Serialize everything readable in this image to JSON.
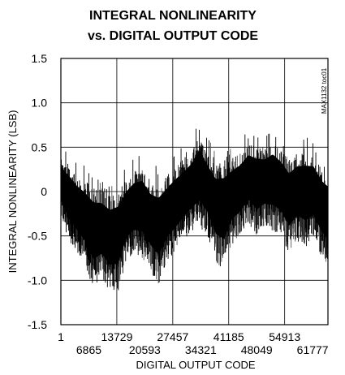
{
  "chart_data": {
    "type": "line",
    "title_lines": [
      "INTEGRAL NONLINEARITY",
      "vs. DIGITAL OUTPUT CODE"
    ],
    "xlabel": "DIGITAL OUTPUT CODE",
    "ylabel": "INTEGRAL NONLINEARITY (LSB)",
    "note": "MAX1132 toc01",
    "xlim": [
      1,
      65535
    ],
    "ylim": [
      -1.5,
      1.5
    ],
    "x_ticks_upper": [
      "1",
      "13729",
      "27457",
      "41185",
      "54913"
    ],
    "x_ticks_lower": [
      "6865",
      "20593",
      "34321",
      "48049",
      "61777"
    ],
    "x_tick_values": [
      1,
      6865,
      13729,
      20593,
      27457,
      34321,
      41185,
      48049,
      54913,
      61777
    ],
    "y_ticks": [
      "1.5",
      "1.0",
      "0.5",
      "0",
      "-0.5",
      "-1.0",
      "-1.5"
    ],
    "y_tick_values": [
      1.5,
      1.0,
      0.5,
      0,
      -0.5,
      -1.0,
      -1.5
    ],
    "grid": true,
    "series": [
      {
        "color": "#000000",
        "envelope": [
          {
            "x": 1,
            "min": -0.3,
            "max": 0.5
          },
          {
            "x": 2000,
            "min": -0.55,
            "max": 0.45
          },
          {
            "x": 4000,
            "min": -0.7,
            "max": 0.35
          },
          {
            "x": 6000,
            "min": -0.85,
            "max": 0.3
          },
          {
            "x": 8000,
            "min": -1.1,
            "max": 0.25
          },
          {
            "x": 10000,
            "min": -1.0,
            "max": 0.2
          },
          {
            "x": 12000,
            "min": -1.15,
            "max": 0.15
          },
          {
            "x": 14000,
            "min": -1.15,
            "max": 0.2
          },
          {
            "x": 16000,
            "min": -0.8,
            "max": 0.3
          },
          {
            "x": 18000,
            "min": -0.7,
            "max": 0.4
          },
          {
            "x": 20000,
            "min": -0.75,
            "max": 0.45
          },
          {
            "x": 22000,
            "min": -0.9,
            "max": 0.3
          },
          {
            "x": 24000,
            "min": -1.05,
            "max": 0.3
          },
          {
            "x": 26000,
            "min": -0.8,
            "max": 0.35
          },
          {
            "x": 28000,
            "min": -0.7,
            "max": 0.45
          },
          {
            "x": 30000,
            "min": -0.55,
            "max": 0.5
          },
          {
            "x": 32000,
            "min": -0.45,
            "max": 0.6
          },
          {
            "x": 34000,
            "min": -0.4,
            "max": 0.8
          },
          {
            "x": 36000,
            "min": -0.5,
            "max": 0.6
          },
          {
            "x": 38000,
            "min": -0.8,
            "max": 0.5
          },
          {
            "x": 40000,
            "min": -0.9,
            "max": 0.55
          },
          {
            "x": 42000,
            "min": -0.6,
            "max": 0.55
          },
          {
            "x": 44000,
            "min": -0.5,
            "max": 0.6
          },
          {
            "x": 46000,
            "min": -0.35,
            "max": 0.7
          },
          {
            "x": 48000,
            "min": -0.5,
            "max": 0.7
          },
          {
            "x": 50000,
            "min": -0.4,
            "max": 0.65
          },
          {
            "x": 52000,
            "min": -0.45,
            "max": 0.75
          },
          {
            "x": 54000,
            "min": -0.5,
            "max": 0.65
          },
          {
            "x": 56000,
            "min": -0.7,
            "max": 0.55
          },
          {
            "x": 58000,
            "min": -0.55,
            "max": 0.6
          },
          {
            "x": 60000,
            "min": -0.65,
            "max": 0.65
          },
          {
            "x": 62000,
            "min": -0.55,
            "max": 0.6
          },
          {
            "x": 64000,
            "min": -0.75,
            "max": 0.45
          },
          {
            "x": 65535,
            "min": -0.85,
            "max": 0.4
          }
        ]
      }
    ]
  }
}
